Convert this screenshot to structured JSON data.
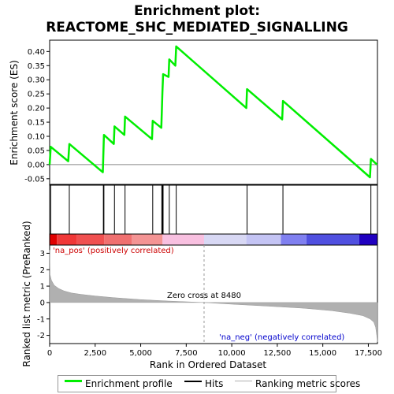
{
  "chart_data": {
    "type": "line",
    "title_line1": "Enrichment plot:",
    "title_line2": "REACTOME_SHC_MEDIATED_SIGNALLING",
    "ylabel_top": "Enrichment score (ES)",
    "ylabel_bottom": "Ranked list metric (PreRanked)",
    "xlabel": "Rank in Ordered Dataset",
    "xlim": [
      0,
      18000
    ],
    "es_ylim": [
      -0.07,
      0.44
    ],
    "es_yticks": [
      -0.05,
      0.0,
      0.05,
      0.1,
      0.15,
      0.2,
      0.25,
      0.3,
      0.35,
      0.4
    ],
    "es_ytick_labels": [
      "-0.05",
      "0.00",
      "0.05",
      "0.10",
      "0.15",
      "0.20",
      "0.25",
      "0.30",
      "0.35",
      "0.40"
    ],
    "metric_ylim": [
      -2.5,
      3.5
    ],
    "metric_yticks": [
      -2,
      -1,
      0,
      1,
      2,
      3
    ],
    "metric_ytick_labels": [
      "-2",
      "-1",
      "0",
      "1",
      "2",
      "3"
    ],
    "xticks": [
      0,
      2500,
      5000,
      7500,
      10000,
      12500,
      15000,
      17500
    ],
    "xtick_labels": [
      "0",
      "2,500",
      "5,000",
      "7,500",
      "10,000",
      "12,500",
      "15,000",
      "17,500"
    ],
    "series": [
      {
        "name": "Enrichment profile",
        "color": "#00ee00",
        "x": [
          0,
          60,
          1020,
          1080,
          2920,
          2950,
          2980,
          3520,
          3560,
          4100,
          4140,
          5620,
          5660,
          6130,
          6160,
          6190,
          6230,
          6530,
          6570,
          6900,
          6950,
          10800,
          10840,
          12770,
          12810,
          17590,
          17640,
          17980
        ],
        "y": [
          0.0,
          0.063,
          0.012,
          0.073,
          -0.027,
          0.04,
          0.105,
          0.073,
          0.135,
          0.105,
          0.17,
          0.09,
          0.155,
          0.13,
          0.19,
          0.255,
          0.32,
          0.31,
          0.372,
          0.35,
          0.418,
          0.2,
          0.267,
          0.16,
          0.225,
          -0.045,
          0.02,
          0.0
        ]
      }
    ],
    "hits": [
      60,
      1080,
      2950,
      2980,
      3560,
      4140,
      5660,
      6160,
      6190,
      6230,
      6570,
      6950,
      10840,
      12810,
      17640
    ],
    "hits_label": "Hits",
    "ranking_metric": {
      "name": "Ranking metric scores",
      "color": "#b0b0b0",
      "x": [
        0,
        20,
        100,
        250,
        500,
        800,
        1200,
        1700,
        2500,
        3500,
        5000,
        6500,
        8480,
        10000,
        12000,
        14000,
        15500,
        16500,
        17200,
        17600,
        17800,
        17900,
        17960,
        18000
      ],
      "y": [
        3.2,
        1.7,
        1.35,
        1.05,
        0.85,
        0.7,
        0.58,
        0.5,
        0.4,
        0.3,
        0.18,
        0.09,
        0.0,
        -0.1,
        -0.22,
        -0.35,
        -0.5,
        -0.65,
        -0.8,
        -1.0,
        -1.2,
        -1.5,
        -2.0,
        -2.4
      ]
    },
    "zero_cross_label": "Zero cross at 8480",
    "zero_cross_x": 8480,
    "pos_label": "'na_pos' (positively correlated)",
    "neg_label": "'na_neg' (negatively correlated)",
    "pos_color": "#cc0000",
    "neg_color": "#0000cc",
    "grid": false
  },
  "legend": {
    "items": [
      {
        "label": "Enrichment profile",
        "color": "#00ee00"
      },
      {
        "label": "Hits",
        "color": "#000000"
      },
      {
        "label": "Ranking metric scores",
        "color": "#b0b0b0"
      }
    ]
  }
}
